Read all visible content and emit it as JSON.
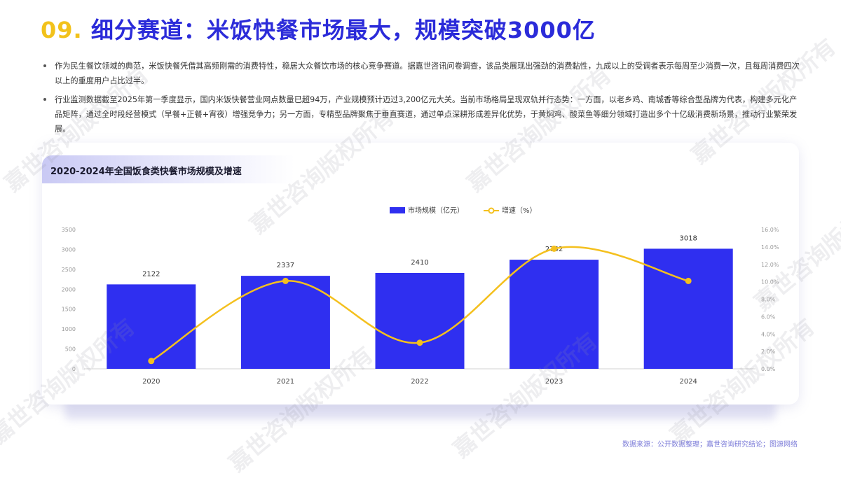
{
  "header": {
    "number": "09.",
    "title": "细分赛道：米饭快餐市场最大，规模突破3000亿"
  },
  "bullets": [
    "作为民生餐饮领域的典范，米饭快餐凭借其高频刚需的消费特性，稳居大众餐饮市场的核心竞争赛道。据嘉世咨讯问卷调查，该品类展现出强劲的消费黏性，九成以上的受调者表示每周至少消费一次，且每周消费四次以上的重度用户占比过半。",
    "行业监测数据截至2025年第一季度显示，国内米饭快餐营业网点数量已超94万，产业规模预计迈过3,200亿元大关。当前市场格局呈现双轨并行态势：一方面，以老乡鸡、南城香等综合型品牌为代表，构建多元化产品矩阵，通过全时段经营模式（早餐+正餐+宵夜）增强竞争力；另一方面，专精型品牌聚焦于垂直赛道，通过单点深耕形成差异化优势，于黄焖鸡、酸菜鱼等细分领域打造出多个十亿级消费新场景，推动行业繁荣发展。"
  ],
  "chart_card": {
    "title": "2020-2024年全国饭食类快餐市场规模及增速"
  },
  "source": "数据来源：公开数据整理；嘉世咨询研究结论；图源网络",
  "watermark_text": "嘉世咨询版权所有",
  "colors": {
    "title_accent": "#f2c21b",
    "title_text": "#2b2bd9",
    "bar": "#2f2ff0",
    "line": "#f4c01e",
    "source_text": "#7b7bd8"
  },
  "chart_data": {
    "type": "bar+line",
    "categories": [
      "2020",
      "2021",
      "2022",
      "2023",
      "2024"
    ],
    "series": [
      {
        "name": "市场规模（亿元）",
        "type": "bar",
        "axis": "left",
        "values": [
          2122,
          2337,
          2410,
          2742,
          3018
        ]
      },
      {
        "name": "增速（%）",
        "type": "line",
        "axis": "right",
        "values": [
          0.9,
          10.1,
          3.0,
          13.8,
          10.1
        ]
      }
    ],
    "left_axis": {
      "min": 0,
      "max": 3500,
      "ticks": [
        "0",
        "500",
        "1000",
        "1500",
        "2000",
        "2500",
        "3000",
        "3500"
      ]
    },
    "right_axis": {
      "min": 0,
      "max": 16,
      "ticks": [
        "0.0%",
        "2.0%",
        "4.0%",
        "6.0%",
        "8.0%",
        "10.0%",
        "12.0%",
        "14.0%",
        "16.0%"
      ]
    },
    "data_labels": [
      "2122",
      "2337",
      "2410",
      "2742",
      "3018"
    ],
    "legend": "top-center",
    "grid": false
  }
}
